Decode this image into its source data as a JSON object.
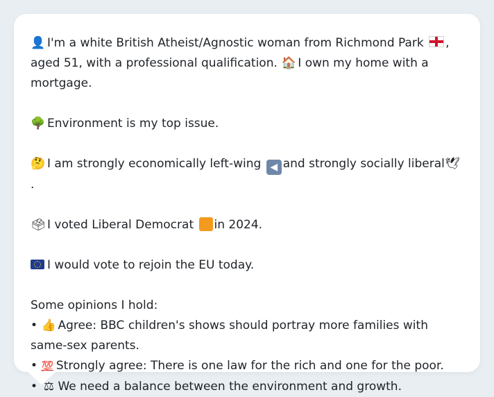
{
  "profile": {
    "line1_a": "I'm a white British Atheist/Agnostic woman from Richmond Park",
    "line1_b": ", aged 51, with a professional qualification.",
    "line1_c": "I own my home with a mortgage.",
    "environment": "Environment is my top issue.",
    "economics_a": "I am strongly economically left-wing",
    "economics_b": "and strongly socially liberal",
    "economics_c": ".",
    "vote_a": "I voted Liberal Democrat",
    "vote_b": "in 2024.",
    "eu": "I would vote to rejoin the EU today.",
    "opinions_heading": "Some opinions I hold:",
    "opinions": [
      {
        "bullet": "•",
        "text": "Agree: BBC children's shows should portray more families with same-sex parents."
      },
      {
        "bullet": "•",
        "text": "Strongly agree: There is one law for the rich and one for the poor."
      },
      {
        "bullet": "•",
        "text": "We need a balance between the environment and growth."
      }
    ]
  },
  "icons": {
    "person": "👤",
    "house": "🏠",
    "tree": "🌳",
    "thinking": "🤔",
    "dove": "🕊",
    "ballot": "🗳",
    "thumbs_up": "👍",
    "hundred": "💯",
    "scales": "⚖"
  },
  "colors": {
    "background": "#e9eef3",
    "card": "#ffffff",
    "text": "#1f2328",
    "libdem_orange": "#f39a1e",
    "eu_blue": "#1f3b8f"
  }
}
